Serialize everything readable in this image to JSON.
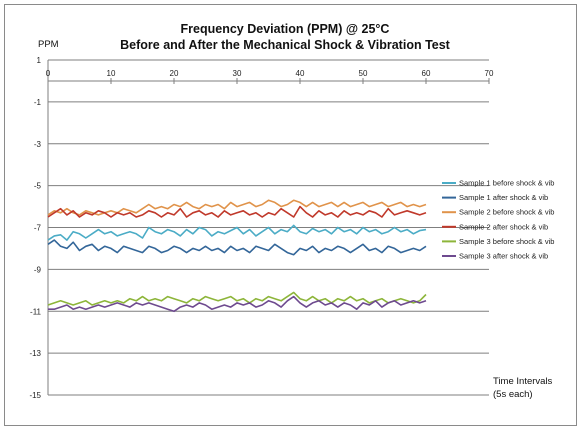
{
  "chart_data": {
    "type": "line",
    "title": "Frequency Deviation (PPM) @ 25°C",
    "subtitle": "Before and After the Mechanical Shock & Vibration Test",
    "ylabel": "PPM",
    "xlabel_line1": "Time Intervals",
    "xlabel_line2": "(5s each)",
    "xlim": [
      0,
      70
    ],
    "ylim": [
      -15,
      1
    ],
    "x_ticks": [
      0,
      10,
      20,
      30,
      40,
      50,
      60,
      70
    ],
    "y_ticks": [
      1,
      -1,
      -3,
      -5,
      -7,
      -9,
      -11,
      -13,
      -15
    ],
    "grid": "horizontal",
    "legend_position": "right",
    "x": [
      0,
      1,
      2,
      3,
      4,
      5,
      6,
      7,
      8,
      9,
      10,
      11,
      12,
      13,
      14,
      15,
      16,
      17,
      18,
      19,
      20,
      21,
      22,
      23,
      24,
      25,
      26,
      27,
      28,
      29,
      30,
      31,
      32,
      33,
      34,
      35,
      36,
      37,
      38,
      39,
      40,
      41,
      42,
      43,
      44,
      45,
      46,
      47,
      48,
      49,
      50,
      51,
      52,
      53,
      54,
      55,
      56,
      57,
      58,
      59,
      60
    ],
    "series": [
      {
        "name": "Sample 1 before shock & vib",
        "color": "#4bacc6",
        "values": [
          -7.6,
          -7.4,
          -7.35,
          -7.6,
          -7.2,
          -7.3,
          -7.5,
          -7.3,
          -7.1,
          -7.3,
          -7.2,
          -7.4,
          -7.3,
          -7.2,
          -7.3,
          -7.5,
          -7.0,
          -7.2,
          -7.3,
          -7.1,
          -7.2,
          -7.4,
          -7.1,
          -7.3,
          -7.0,
          -7.1,
          -7.4,
          -7.2,
          -7.3,
          -7.15,
          -7.0,
          -7.3,
          -7.1,
          -7.4,
          -7.2,
          -7.0,
          -7.3,
          -7.1,
          -7.2,
          -6.9,
          -7.2,
          -7.3,
          -7.05,
          -7.2,
          -7.1,
          -7.3,
          -7.0,
          -7.2,
          -7.1,
          -7.3,
          -7.0,
          -7.2,
          -7.1,
          -7.3,
          -7.2,
          -7.0,
          -7.2,
          -7.1,
          -7.3,
          -7.15,
          -7.1
        ]
      },
      {
        "name": "Sample 1 after shock & vib",
        "color": "#336699",
        "values": [
          -7.8,
          -7.6,
          -7.9,
          -8.0,
          -7.7,
          -8.1,
          -7.9,
          -7.8,
          -8.1,
          -7.9,
          -8.0,
          -8.2,
          -7.9,
          -8.0,
          -8.1,
          -8.2,
          -7.9,
          -8.0,
          -8.2,
          -8.1,
          -7.9,
          -8.0,
          -8.2,
          -8.0,
          -8.1,
          -7.9,
          -8.1,
          -8.0,
          -8.2,
          -7.9,
          -8.1,
          -8.0,
          -8.2,
          -7.9,
          -8.0,
          -8.1,
          -7.8,
          -8.0,
          -8.2,
          -8.3,
          -8.0,
          -8.1,
          -7.9,
          -8.2,
          -8.0,
          -8.1,
          -7.9,
          -8.0,
          -8.2,
          -8.0,
          -7.8,
          -8.1,
          -8.0,
          -8.2,
          -7.9,
          -8.0,
          -8.2,
          -8.1,
          -8.0,
          -8.1,
          -7.9
        ]
      },
      {
        "name": "Sample 2 before shock & vib",
        "color": "#e0934a",
        "values": [
          -6.4,
          -6.2,
          -6.3,
          -6.1,
          -6.3,
          -6.4,
          -6.2,
          -6.3,
          -6.4,
          -6.3,
          -6.2,
          -6.3,
          -6.1,
          -6.2,
          -6.3,
          -6.1,
          -5.9,
          -6.1,
          -6.0,
          -6.1,
          -5.9,
          -6.0,
          -5.8,
          -6.0,
          -6.1,
          -5.9,
          -6.0,
          -5.9,
          -6.1,
          -5.8,
          -6.0,
          -5.9,
          -5.8,
          -6.0,
          -5.9,
          -5.7,
          -5.8,
          -6.0,
          -5.9,
          -5.7,
          -5.8,
          -6.0,
          -5.8,
          -6.0,
          -5.9,
          -5.8,
          -6.0,
          -5.8,
          -6.0,
          -5.9,
          -5.8,
          -6.0,
          -5.9,
          -5.8,
          -6.0,
          -5.9,
          -5.8,
          -6.0,
          -5.9,
          -6.0,
          -5.9
        ]
      },
      {
        "name": "Sample  2 after shock & vib",
        "color": "#c0392b",
        "values": [
          -6.5,
          -6.3,
          -6.1,
          -6.4,
          -6.2,
          -6.5,
          -6.3,
          -6.4,
          -6.2,
          -6.3,
          -6.5,
          -6.3,
          -6.4,
          -6.3,
          -6.5,
          -6.4,
          -6.2,
          -6.3,
          -6.5,
          -6.3,
          -6.4,
          -6.1,
          -6.5,
          -6.3,
          -6.2,
          -6.4,
          -6.3,
          -6.5,
          -6.2,
          -6.4,
          -6.3,
          -6.2,
          -6.4,
          -6.3,
          -6.5,
          -6.3,
          -6.4,
          -6.1,
          -6.3,
          -6.5,
          -6.0,
          -6.3,
          -6.5,
          -6.2,
          -6.4,
          -6.3,
          -6.5,
          -6.2,
          -6.4,
          -6.3,
          -6.4,
          -6.2,
          -6.3,
          -6.5,
          -6.1,
          -6.4,
          -6.3,
          -6.2,
          -6.3,
          -6.4,
          -6.3
        ]
      },
      {
        "name": "Sample 3 before shock & vib",
        "color": "#8db53a",
        "values": [
          -10.7,
          -10.6,
          -10.5,
          -10.6,
          -10.7,
          -10.6,
          -10.5,
          -10.7,
          -10.6,
          -10.5,
          -10.6,
          -10.5,
          -10.6,
          -10.4,
          -10.5,
          -10.3,
          -10.5,
          -10.4,
          -10.5,
          -10.3,
          -10.4,
          -10.5,
          -10.6,
          -10.4,
          -10.5,
          -10.3,
          -10.4,
          -10.5,
          -10.4,
          -10.3,
          -10.5,
          -10.4,
          -10.6,
          -10.4,
          -10.5,
          -10.3,
          -10.4,
          -10.5,
          -10.3,
          -10.1,
          -10.4,
          -10.5,
          -10.3,
          -10.5,
          -10.4,
          -10.6,
          -10.4,
          -10.5,
          -10.3,
          -10.5,
          -10.4,
          -10.6,
          -10.5,
          -10.4,
          -10.6,
          -10.5,
          -10.4,
          -10.5,
          -10.6,
          -10.5,
          -10.2
        ]
      },
      {
        "name": "Sample 3 after shock & vib",
        "color": "#6e4a8f",
        "values": [
          -10.9,
          -10.9,
          -10.8,
          -10.7,
          -10.9,
          -10.8,
          -10.9,
          -10.8,
          -10.7,
          -10.8,
          -10.7,
          -10.6,
          -10.7,
          -10.8,
          -10.6,
          -10.7,
          -10.6,
          -10.7,
          -10.8,
          -10.9,
          -11.0,
          -10.8,
          -10.7,
          -10.8,
          -10.6,
          -10.7,
          -10.9,
          -10.8,
          -10.7,
          -10.8,
          -10.6,
          -10.7,
          -10.6,
          -10.8,
          -10.7,
          -10.5,
          -10.6,
          -10.8,
          -10.5,
          -10.3,
          -10.6,
          -10.8,
          -10.6,
          -10.5,
          -10.7,
          -10.6,
          -10.8,
          -10.6,
          -10.7,
          -10.9,
          -10.6,
          -10.7,
          -10.5,
          -10.8,
          -10.6,
          -10.5,
          -10.7,
          -10.6,
          -10.5,
          -10.6,
          -10.5
        ]
      }
    ]
  }
}
